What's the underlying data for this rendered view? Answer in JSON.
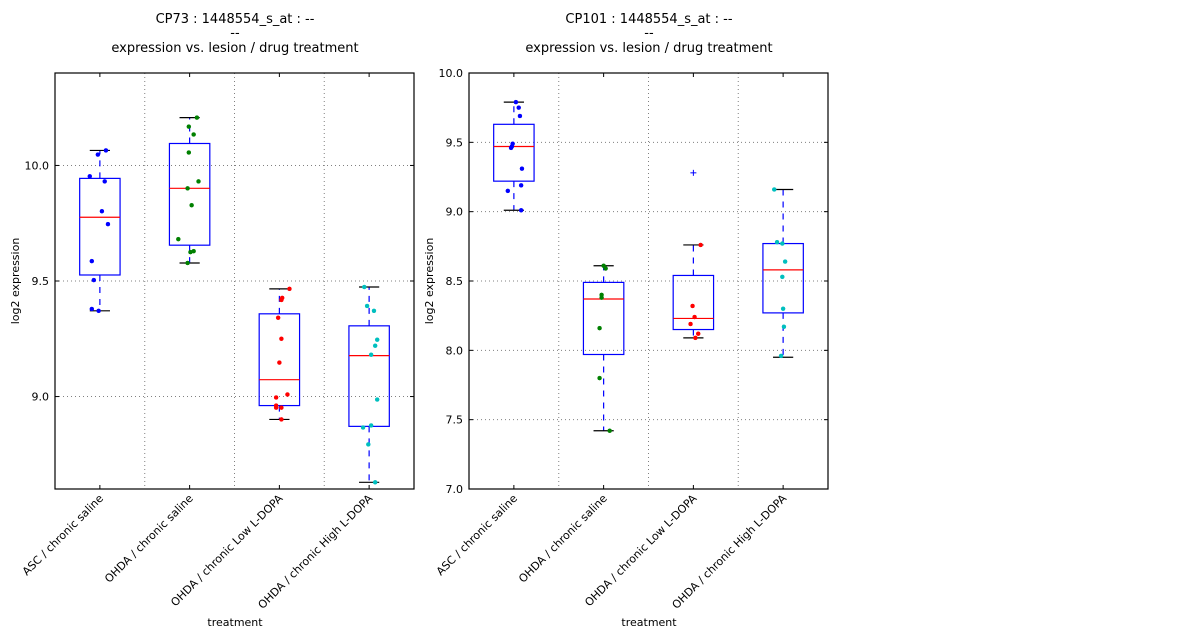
{
  "chart_data": [
    {
      "type": "box",
      "title_lines": [
        "CP73 : 1448554_s_at : --",
        "--",
        "expression vs. lesion / drug treatment"
      ],
      "xlabel": "treatment",
      "ylabel": "log2 expression",
      "ylim": [
        8.6,
        10.4
      ],
      "yticks": [
        9.0,
        9.5,
        10.0
      ],
      "ytick_labels": [
        "9.0",
        "9.5",
        "10.0"
      ],
      "grid": true,
      "categories": [
        "ASC / chronic saline",
        "OHDA / chronic saline",
        "OHDA / chronic Low L-DOPA",
        "OHDA / chronic High L-DOPA"
      ],
      "series": [
        {
          "name": "ASC / chronic saline",
          "color": "#0000ff",
          "box": {
            "whisker_low": 9.371,
            "q1": 9.526,
            "median": 9.776,
            "q3": 9.944,
            "whisker_high": 10.065
          },
          "outliers": [],
          "points": [
            10.065,
            10.047,
            9.953,
            9.931,
            9.802,
            9.746,
            9.586,
            9.504,
            9.379,
            9.371
          ],
          "jitter": [
            0.15,
            -0.05,
            -0.25,
            0.12,
            0.05,
            0.2,
            -0.2,
            -0.15,
            -0.2,
            -0.03
          ]
        },
        {
          "name": "OHDA / chronic saline",
          "color": "#008000",
          "box": {
            "whisker_low": 9.578,
            "q1": 9.655,
            "median": 9.901,
            "q3": 10.095,
            "whisker_high": 10.207
          },
          "outliers": [],
          "points": [
            10.207,
            10.168,
            10.134,
            10.056,
            9.931,
            9.901,
            9.828,
            9.681,
            9.629,
            9.625,
            9.578
          ],
          "jitter": [
            0.18,
            -0.02,
            0.1,
            -0.02,
            0.22,
            -0.05,
            0.05,
            -0.28,
            0.1,
            0.02,
            -0.05
          ]
        },
        {
          "name": "OHDA / chronic Low L-DOPA",
          "color": "#ff0000",
          "box": {
            "whisker_low": 8.901,
            "q1": 8.961,
            "median": 9.073,
            "q3": 9.358,
            "whisker_high": 9.466
          },
          "outliers": [],
          "points": [
            9.466,
            9.427,
            9.418,
            9.341,
            9.25,
            9.147,
            9.009,
            8.996,
            8.961,
            8.952,
            8.952,
            8.901
          ],
          "jitter": [
            0.25,
            0.07,
            0.05,
            -0.03,
            0.05,
            0.0,
            0.2,
            -0.08,
            -0.08,
            0.05,
            -0.08,
            0.05
          ]
        },
        {
          "name": "OHDA / chronic High L-DOPA",
          "color": "#00bfbf",
          "box": {
            "whisker_low": 8.629,
            "q1": 8.871,
            "median": 9.177,
            "q3": 9.306,
            "whisker_high": 9.474
          },
          "outliers": [],
          "points": [
            9.474,
            9.392,
            9.371,
            9.246,
            9.22,
            9.181,
            8.987,
            8.875,
            8.866,
            8.793,
            8.629
          ],
          "jitter": [
            -0.12,
            -0.05,
            0.12,
            0.2,
            0.15,
            0.05,
            0.2,
            0.05,
            -0.15,
            -0.02,
            0.15
          ]
        }
      ]
    },
    {
      "type": "box",
      "title_lines": [
        "CP101 : 1448554_s_at : --",
        "--",
        "expression vs. lesion / drug treatment"
      ],
      "xlabel": "treatment",
      "ylabel": "log2 expression",
      "ylim": [
        7.0,
        10.0
      ],
      "yticks": [
        7.0,
        7.5,
        8.0,
        8.5,
        9.0,
        9.5,
        10.0
      ],
      "ytick_labels": [
        "7.0",
        "7.5",
        "8.0",
        "8.5",
        "9.0",
        "9.5",
        "10.0"
      ],
      "grid": true,
      "categories": [
        "ASC / chronic saline",
        "OHDA / chronic saline",
        "OHDA / chronic Low L-DOPA",
        "OHDA / chronic High L-DOPA"
      ],
      "series": [
        {
          "name": "ASC / chronic saline",
          "color": "#0000ff",
          "box": {
            "whisker_low": 9.01,
            "q1": 9.22,
            "median": 9.47,
            "q3": 9.63,
            "whisker_high": 9.79
          },
          "outliers": [],
          "points": [
            9.79,
            9.75,
            9.69,
            9.49,
            9.47,
            9.46,
            9.31,
            9.19,
            9.15,
            9.01
          ],
          "jitter": [
            0.05,
            0.12,
            0.15,
            -0.03,
            -0.05,
            -0.07,
            0.2,
            0.18,
            -0.15,
            0.18
          ]
        },
        {
          "name": "OHDA / chronic saline",
          "color": "#008000",
          "box": {
            "whisker_low": 7.42,
            "q1": 7.97,
            "median": 8.37,
            "q3": 8.49,
            "whisker_high": 8.61
          },
          "outliers": [],
          "points": [
            8.61,
            8.59,
            8.4,
            8.38,
            8.16,
            7.8,
            7.42
          ],
          "jitter": [
            0.0,
            0.05,
            -0.05,
            -0.05,
            -0.1,
            -0.1,
            0.15
          ]
        },
        {
          "name": "OHDA / chronic Low L-DOPA",
          "color": "#ff0000",
          "box": {
            "whisker_low": 8.09,
            "q1": 8.15,
            "median": 8.23,
            "q3": 8.54,
            "whisker_high": 8.76
          },
          "outliers": [
            9.28
          ],
          "points": [
            8.76,
            8.32,
            8.24,
            8.19,
            8.12,
            8.09
          ],
          "jitter": [
            0.18,
            -0.02,
            0.03,
            -0.07,
            0.12,
            0.05
          ]
        },
        {
          "name": "OHDA / chronic High L-DOPA",
          "color": "#00bfbf",
          "box": {
            "whisker_low": 7.95,
            "q1": 8.27,
            "median": 8.58,
            "q3": 8.77,
            "whisker_high": 9.16
          },
          "outliers": [],
          "points": [
            9.16,
            8.78,
            8.77,
            8.64,
            8.53,
            8.3,
            8.17,
            7.96
          ],
          "jitter": [
            -0.22,
            -0.15,
            -0.02,
            0.05,
            -0.02,
            0.0,
            0.02,
            -0.05
          ]
        }
      ]
    }
  ]
}
